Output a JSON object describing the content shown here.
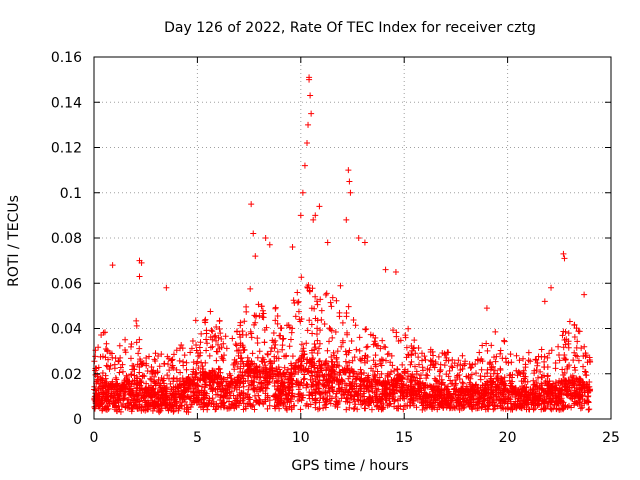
{
  "chart_data": {
    "type": "scatter",
    "title": "Day 126 of 2022, Rate Of TEC Index for receiver cztg",
    "xlabel": "GPS time / hours",
    "ylabel": "ROTI / TECUs",
    "xlim": [
      0,
      25
    ],
    "ylim": [
      0,
      0.16
    ],
    "x_ticks": [
      0,
      5,
      10,
      15,
      20,
      25
    ],
    "x_tick_labels": [
      "0",
      "5",
      "10",
      "15",
      "20",
      "25"
    ],
    "y_ticks": [
      0,
      0.02,
      0.04,
      0.06,
      0.08,
      0.1,
      0.12,
      0.14,
      0.16
    ],
    "y_tick_labels": [
      "0",
      "0.02",
      "0.04",
      "0.06",
      "0.08",
      "0.1",
      "0.12",
      "0.14",
      "0.16"
    ],
    "grid": true,
    "marker": "+",
    "marker_color": "#ff0000",
    "series": [
      {
        "name": "ROTI",
        "envelope": {
          "x": [
            0,
            0.5,
            1,
            1.5,
            2,
            2.5,
            3,
            3.5,
            4,
            4.5,
            5,
            5.5,
            6,
            6.5,
            7,
            7.5,
            8,
            8.5,
            9,
            9.5,
            10,
            10.5,
            11,
            11.5,
            12,
            12.5,
            13,
            13.5,
            14,
            14.5,
            15,
            15.5,
            16,
            16.5,
            17,
            17.5,
            18,
            18.5,
            19,
            19.5,
            20,
            20.5,
            21,
            21.5,
            22,
            22.5,
            23,
            23.5,
            24
          ],
          "y_min": [
            0.004,
            0.003,
            0.003,
            0.003,
            0.003,
            0.003,
            0.003,
            0.003,
            0.003,
            0.003,
            0.003,
            0.004,
            0.004,
            0.004,
            0.004,
            0.004,
            0.004,
            0.004,
            0.004,
            0.004,
            0.004,
            0.004,
            0.004,
            0.004,
            0.004,
            0.004,
            0.004,
            0.004,
            0.004,
            0.004,
            0.004,
            0.004,
            0.004,
            0.004,
            0.004,
            0.004,
            0.004,
            0.004,
            0.004,
            0.004,
            0.004,
            0.004,
            0.004,
            0.004,
            0.004,
            0.004,
            0.004,
            0.004,
            0.004
          ],
          "y_max": [
            0.035,
            0.04,
            0.032,
            0.035,
            0.045,
            0.03,
            0.03,
            0.028,
            0.032,
            0.04,
            0.045,
            0.05,
            0.045,
            0.035,
            0.04,
            0.06,
            0.055,
            0.055,
            0.045,
            0.05,
            0.065,
            0.06,
            0.06,
            0.055,
            0.06,
            0.05,
            0.04,
            0.04,
            0.035,
            0.04,
            0.045,
            0.035,
            0.035,
            0.03,
            0.03,
            0.028,
            0.028,
            0.03,
            0.035,
            0.04,
            0.032,
            0.028,
            0.03,
            0.032,
            0.03,
            0.035,
            0.045,
            0.04,
            0.03
          ]
        },
        "x": [
          0.9,
          2.2,
          2.3,
          2.2,
          3.5,
          7.6,
          7.7,
          7.8,
          8.3,
          8.5,
          9.6,
          10.0,
          10.1,
          10.2,
          10.3,
          10.35,
          10.4,
          10.4,
          10.45,
          10.5,
          10.6,
          10.7,
          10.9,
          11.3,
          12.2,
          12.3,
          12.35,
          12.4,
          12.8,
          13.1,
          14.1,
          14.6,
          19.0,
          21.8,
          22.1,
          22.7,
          22.75,
          23.7
        ],
        "y": [
          0.068,
          0.07,
          0.069,
          0.063,
          0.058,
          0.095,
          0.082,
          0.072,
          0.08,
          0.077,
          0.076,
          0.09,
          0.1,
          0.112,
          0.122,
          0.13,
          0.15,
          0.151,
          0.143,
          0.135,
          0.088,
          0.09,
          0.094,
          0.078,
          0.088,
          0.11,
          0.105,
          0.1,
          0.08,
          0.078,
          0.066,
          0.065,
          0.049,
          0.052,
          0.058,
          0.073,
          0.071,
          0.055
        ]
      }
    ]
  }
}
